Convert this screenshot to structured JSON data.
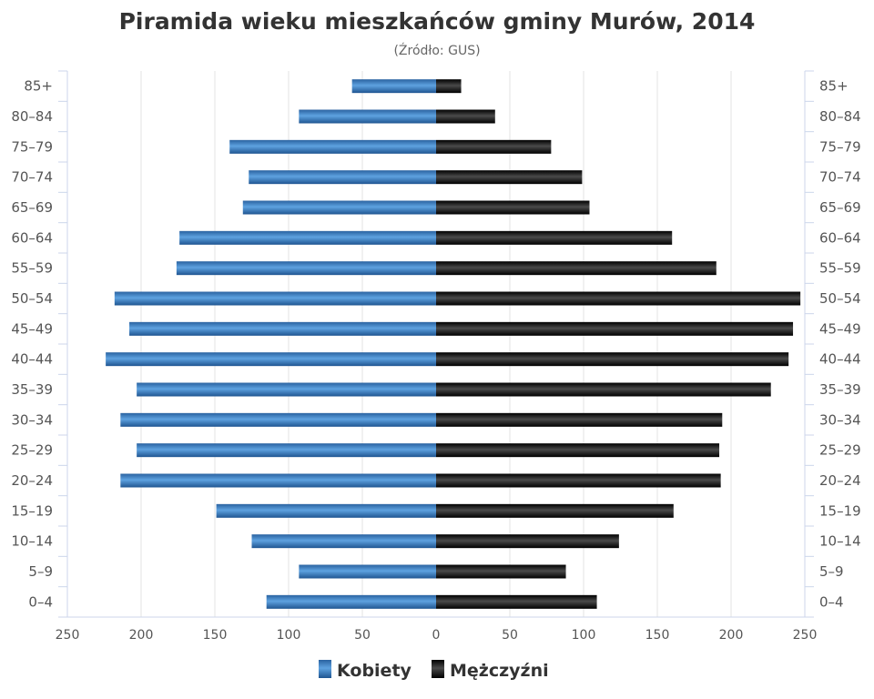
{
  "chart_data": {
    "type": "bar",
    "orientation": "horizontal-population-pyramid",
    "title": "Piramida wieku mieszkańców gminy Murów, 2014",
    "subtitle": "(Źródło: GUS)",
    "categories": [
      "85+",
      "80–84",
      "75–79",
      "70–74",
      "65–69",
      "60–64",
      "55–59",
      "50–54",
      "45–49",
      "40–44",
      "35–39",
      "30–34",
      "25–29",
      "20–24",
      "15–19",
      "10–14",
      "5–9",
      "0–4"
    ],
    "series": [
      {
        "name": "Kobiety",
        "side": "left",
        "color": "#3a7cc0",
        "values": [
          57,
          93,
          140,
          127,
          131,
          174,
          176,
          218,
          208,
          224,
          203,
          214,
          203,
          214,
          149,
          125,
          93,
          115
        ]
      },
      {
        "name": "Mężczyźni",
        "side": "right",
        "color": "#1a1a1a",
        "values": [
          17,
          40,
          78,
          99,
          104,
          160,
          190,
          247,
          242,
          239,
          227,
          194,
          192,
          193,
          161,
          124,
          88,
          109
        ]
      }
    ],
    "xlim": [
      -250,
      250
    ],
    "xticks": [
      250,
      200,
      150,
      100,
      50,
      0,
      50,
      100,
      150,
      200,
      250
    ],
    "grid": true,
    "legend": "bottom"
  }
}
